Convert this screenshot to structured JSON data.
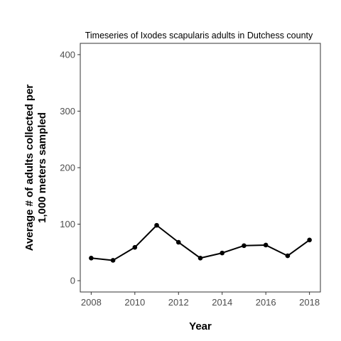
{
  "chart_data": {
    "type": "line",
    "title": "Timeseries of Ixodes scapularis adults in Dutchess county",
    "xlabel": "Year",
    "ylabel_lines": [
      "Average # of adults collected per",
      "1,000 meters sampled"
    ],
    "x": [
      2008,
      2009,
      2010,
      2011,
      2012,
      2013,
      2014,
      2015,
      2016,
      2017,
      2018
    ],
    "y": [
      40,
      36,
      59,
      98,
      68,
      40,
      49,
      62,
      63,
      44,
      72
    ],
    "xlim": [
      2007.5,
      2018.5
    ],
    "ylim": [
      -20,
      420
    ],
    "xticks": [
      2008,
      2010,
      2012,
      2014,
      2016,
      2018
    ],
    "yticks": [
      0,
      100,
      200,
      300,
      400
    ],
    "grid": false,
    "colors": {
      "line": "#000000",
      "points": "#000000",
      "panel_border": "#333333",
      "tick_text": "#4d4d4d"
    }
  }
}
